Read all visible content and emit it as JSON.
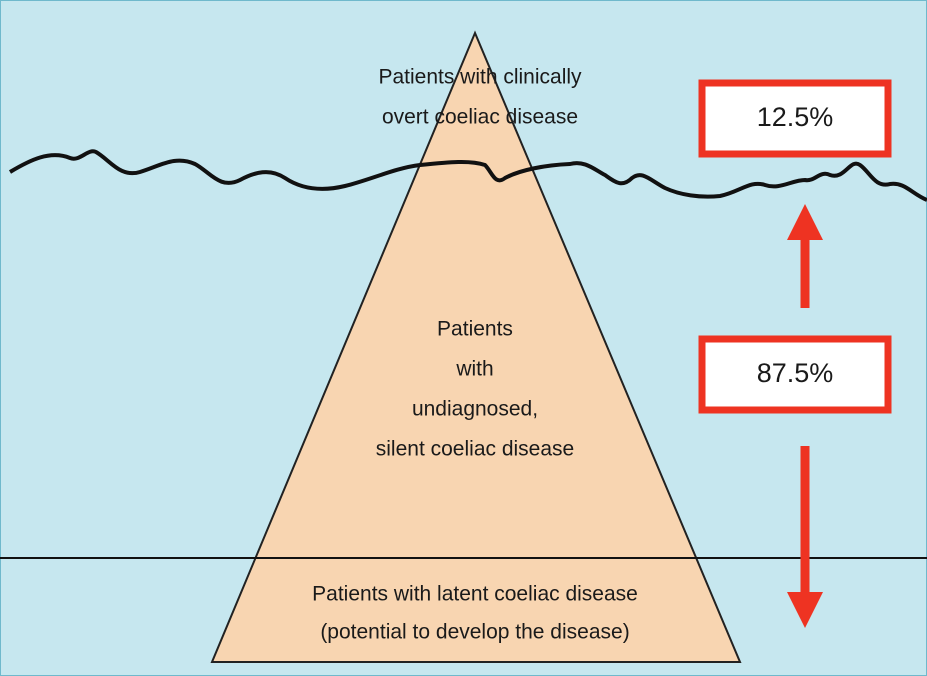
{
  "regions": [
    {
      "lines": [
        "Patients with clinically",
        "overt coeliac disease"
      ]
    },
    {
      "lines": [
        "Patients",
        "with",
        "undiagnosed,",
        "silent coeliac disease"
      ]
    },
    {
      "lines": [
        "Patients with latent coeliac disease",
        "(potential to develop the disease)"
      ]
    }
  ],
  "callouts": [
    {
      "label": "12.5%"
    },
    {
      "label": "87.5%"
    }
  ]
}
